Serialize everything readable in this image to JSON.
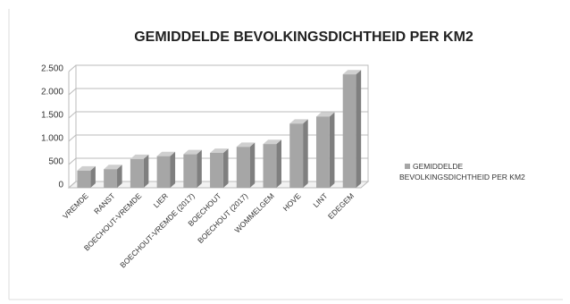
{
  "chart_data": {
    "type": "bar3d",
    "title": "GEMIDDELDE BEVOLKINGSDICHTHEID PER KM2",
    "categories": [
      "VREMDE",
      "RANST",
      "BOECHOUT-VREMDE",
      "LIER",
      "BOECHOUT-VREMDE (2017)",
      "BOECHOUT",
      "BOECHOUT (2017)",
      "WOMMELGEM",
      "HOVE",
      "LINT",
      "EDEGEM"
    ],
    "series": [
      {
        "name": "GEMIDDELDE BEVOLKINGSDICHTHEID PER KM2",
        "color": "#a6a6a6",
        "values": [
          370,
          400,
          620,
          680,
          720,
          750,
          880,
          940,
          1380,
          1530,
          2440
        ]
      }
    ],
    "ylim": [
      0,
      2500
    ],
    "yticks": [
      0,
      500,
      {
        "value": 1000,
        "label": "1.000"
      },
      {
        "value": 1500,
        "label": "1.500"
      },
      {
        "value": 2000,
        "label": "2.000"
      },
      {
        "value": 2500,
        "label": "2.500"
      }
    ],
    "grid": true,
    "legend": "right"
  }
}
